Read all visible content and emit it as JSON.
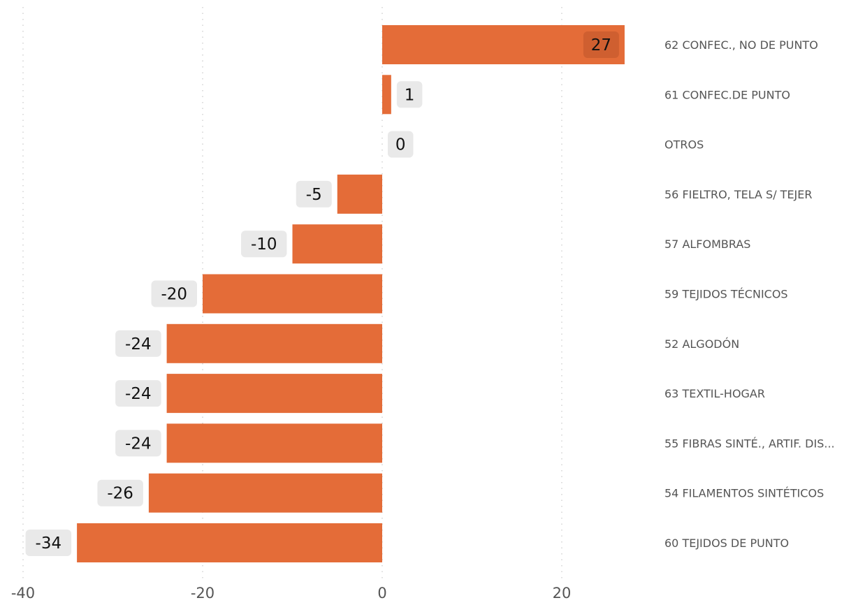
{
  "chart_data": {
    "type": "bar",
    "orientation": "horizontal",
    "categories": [
      "62 CONFEC., NO DE PUNTO",
      "61 CONFEC.DE PUNTO",
      "OTROS",
      "56 FIELTRO, TELA S/ TEJER",
      "57 ALFOMBRAS",
      "59 TEJIDOS TÉCNICOS",
      "52 ALGODÓN",
      "63 TEXTIL-HOGAR",
      "55 FIBRAS SINTÉ., ARTIF. DIS...",
      "54 FILAMENTOS SINTÉTICOS",
      "60 TEJIDOS DE PUNTO"
    ],
    "values": [
      27,
      1,
      0,
      -5,
      -10,
      -20,
      -24,
      -24,
      -24,
      -26,
      -34
    ],
    "data_labels": [
      "27",
      "1",
      "0",
      "-5",
      "-10",
      "-20",
      "-24",
      "-24",
      "-24",
      "-26",
      "-34"
    ],
    "x_ticks": [
      -40,
      -20,
      0,
      20
    ],
    "x_tick_labels": [
      "-40",
      "-20",
      "0",
      "20"
    ],
    "xlim": [
      -40,
      27
    ],
    "grid": true,
    "category_label_side": "right",
    "title": "",
    "xlabel": "",
    "ylabel": "",
    "colors": {
      "bar": "#e46c38",
      "label_background": "#e9e9e9",
      "label_background_inside": "#cf5f30",
      "gridline": "#c8c8c8"
    }
  }
}
